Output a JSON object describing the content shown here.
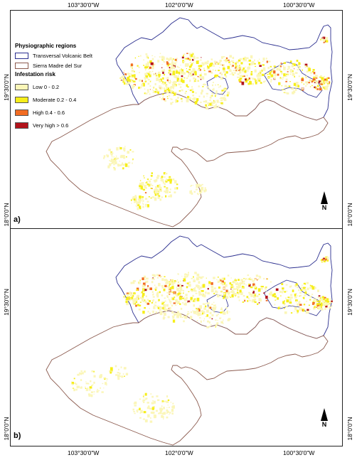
{
  "graticule": {
    "top_labels": [
      "103°30'0\"W",
      "102°0'0\"W",
      "100°30'0\"W"
    ],
    "bottom_labels": [
      "103°30'0\"W",
      "102°0'0\"W",
      "100°30'0\"W"
    ],
    "lat_a": [
      "19°30'0\"N",
      "18°0'0\"N"
    ],
    "lat_b": [
      "19°30'0\"N",
      "18°0'0\"N"
    ]
  },
  "legend": {
    "regions_title": "Physiographic regions",
    "regions": [
      {
        "label": "Transversal Volcanic Belt",
        "stroke": "#2b2f8f"
      },
      {
        "label": "Sierra Madre del Sur",
        "stroke": "#8b5a4e"
      }
    ],
    "risk_title": "Infestation risk",
    "risk_classes": [
      {
        "label": "Low 0 - 0.2",
        "color": "#fbf6b8"
      },
      {
        "label": "Moderate 0.2 - 0.4",
        "color": "#f6ee1a"
      },
      {
        "label": "High 0.4 - 0.6",
        "color": "#f26c22"
      },
      {
        "label": "Very high > 0.6",
        "color": "#b2131b"
      }
    ]
  },
  "panels": {
    "a": {
      "label": "a)",
      "north_label": "N"
    },
    "b": {
      "label": "b)",
      "north_label": "N"
    }
  }
}
